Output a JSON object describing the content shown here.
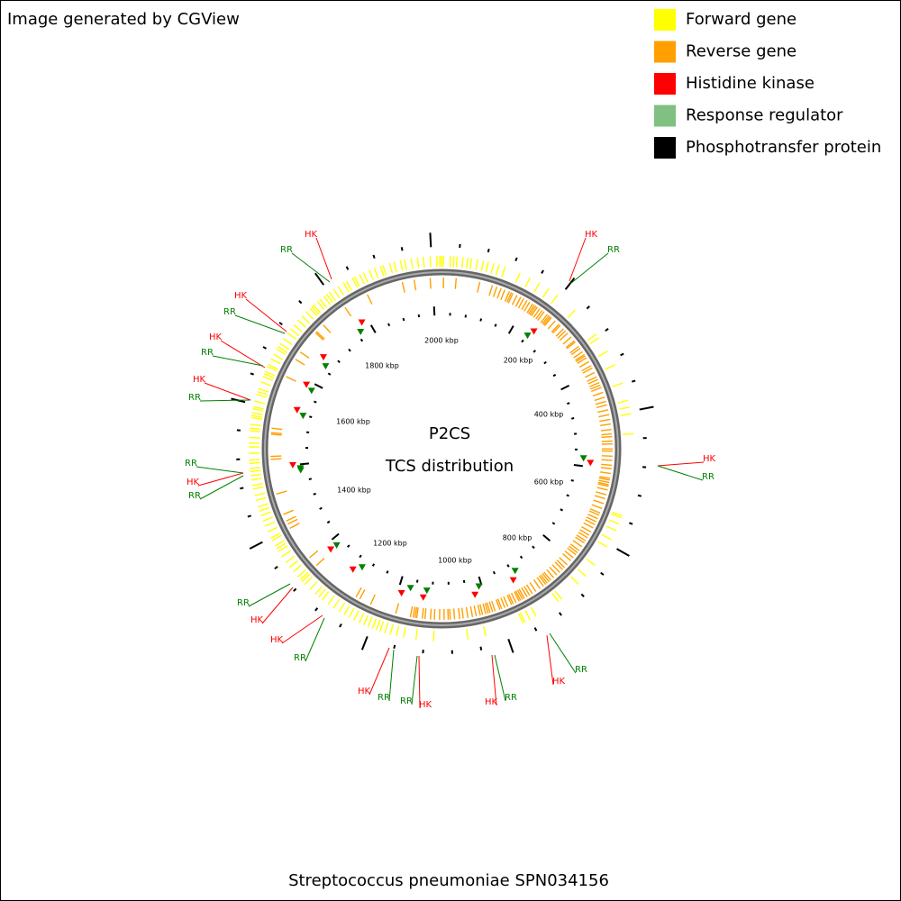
{
  "header": {
    "credit": "Image generated by CGView"
  },
  "legend": [
    {
      "label": "Forward gene",
      "color": "#ffff00"
    },
    {
      "label": "Reverse gene",
      "color": "#ff9f00"
    },
    {
      "label": "Histidine kinase",
      "color": "#ff0000"
    },
    {
      "label": "Response regulator",
      "color": "#80c080"
    },
    {
      "label": "Phosphotransfer protein",
      "color": "#000000"
    }
  ],
  "map": {
    "title": "P2CS",
    "subtitle": "TCS distribution",
    "scale_labels": [
      "200 kbp",
      "400 kbp",
      "600 kbp",
      "800 kbp",
      "1000 kbp",
      "1200 kbp",
      "1400 kbp",
      "1600 kbp",
      "1800 kbp",
      "2000 kbp"
    ],
    "annotations": [
      "HK",
      "RR",
      "HK",
      "RR",
      "HK",
      "RR",
      "HK",
      "RR",
      "HK",
      "RR",
      "RR",
      "HK",
      "RR",
      "HK",
      "RR",
      "RR",
      "HK",
      "HK",
      "RR",
      "HK",
      "RR",
      "RR",
      "HK",
      "HK",
      "RR",
      "HK",
      "RR"
    ]
  },
  "footer": "Streptococcus pneumoniae SPN034156"
}
